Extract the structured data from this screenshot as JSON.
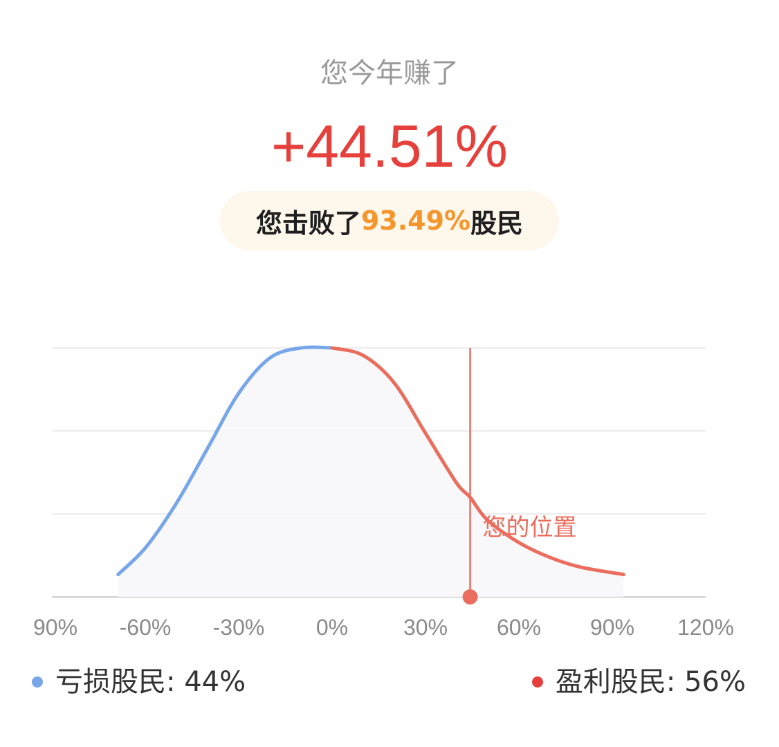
{
  "header": {
    "subtitle": "您今年赚了",
    "return_value": "+44.51%",
    "beat_prefix": "您击败了",
    "beat_percent": "93.49%",
    "beat_suffix": "股民"
  },
  "colors": {
    "loss": "#77a7e8",
    "profit": "#eb6d5e",
    "marker": "#eb6d5e",
    "return_text": "#e5403b",
    "highlight": "#f5962d",
    "grid": "#e6e6e6",
    "axis": "#cccccc",
    "tick_text": "#8a8a8a"
  },
  "chart_data": {
    "type": "area",
    "title": "",
    "xlabel": "",
    "ylabel": "",
    "x_tick_labels": [
      "90%",
      "-60%",
      "-30%",
      "0%",
      "30%",
      "60%",
      "90%",
      "120%"
    ],
    "x_range": [
      -90,
      120
    ],
    "series": [
      {
        "color_key": "loss",
        "x": [
          -69,
          -60,
          -50,
          -40,
          -30,
          -20,
          -10,
          0
        ],
        "y": [
          0.09,
          0.2,
          0.38,
          0.6,
          0.82,
          0.96,
          1.0,
          1.0
        ]
      },
      {
        "color_key": "profit",
        "x": [
          0,
          10,
          20,
          30,
          40,
          44.51,
          50,
          60,
          70,
          80,
          94
        ],
        "y": [
          1.0,
          0.97,
          0.86,
          0.66,
          0.46,
          0.4,
          0.31,
          0.22,
          0.16,
          0.12,
          0.09
        ]
      }
    ],
    "marker": {
      "x": 44.51,
      "label": "您的位置"
    },
    "gridlines": 4
  },
  "legend": {
    "loss_label": "亏损股民: 44%",
    "profit_label": "盈利股民: 56%"
  }
}
